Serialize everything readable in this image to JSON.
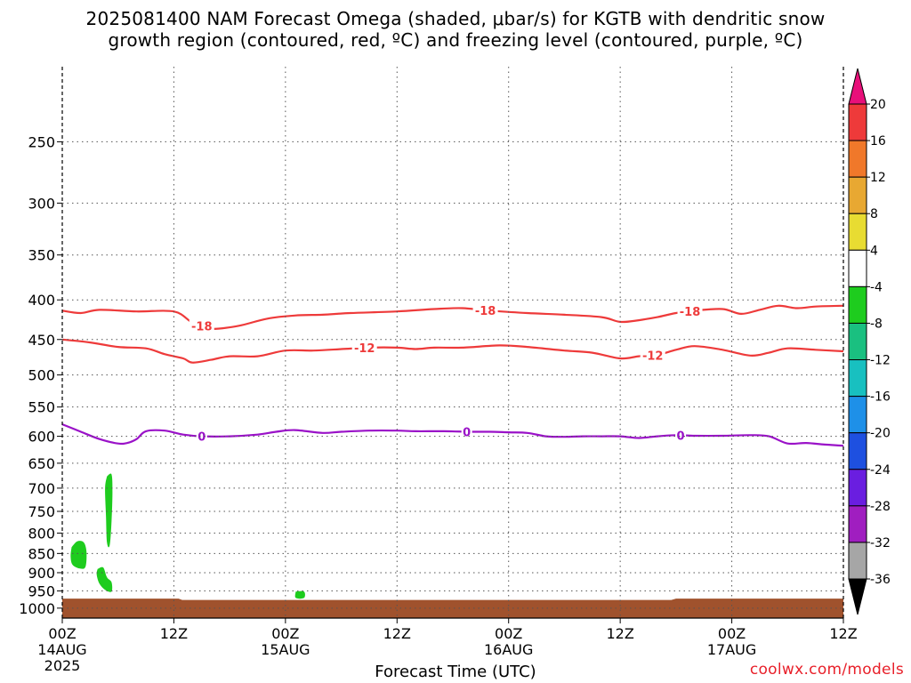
{
  "title": {
    "line1": "2025081400 NAM Forecast Omega (shaded, μbar/s) for KGTB with dendritic snow",
    "line2": "growth region (contoured, red, ºC) and freezing level (contoured, purple, ºC)"
  },
  "xlabel": "Forecast Time (UTC)",
  "credit": "coolwx.com/models",
  "chart_data": {
    "type": "contour",
    "x_unit": "forecast hour",
    "xlim": [
      0,
      84
    ],
    "ylim_hpa": [
      1030,
      200
    ],
    "y_ticks": [
      250,
      300,
      350,
      400,
      450,
      500,
      550,
      600,
      650,
      700,
      750,
      800,
      850,
      900,
      950,
      1000
    ],
    "x_ticks": [
      {
        "hour": 0,
        "label": "00Z",
        "date": "14AUG",
        "year": "2025"
      },
      {
        "hour": 12,
        "label": "12Z",
        "date": "",
        "year": ""
      },
      {
        "hour": 24,
        "label": "00Z",
        "date": "15AUG",
        "year": ""
      },
      {
        "hour": 36,
        "label": "12Z",
        "date": "",
        "year": ""
      },
      {
        "hour": 48,
        "label": "00Z",
        "date": "16AUG",
        "year": ""
      },
      {
        "hour": 60,
        "label": "12Z",
        "date": "",
        "year": ""
      },
      {
        "hour": 72,
        "label": "00Z",
        "date": "17AUG",
        "year": ""
      },
      {
        "hour": 84,
        "label": "12Z",
        "date": "",
        "year": ""
      }
    ],
    "colorbar": {
      "labels": [
        "20",
        "16",
        "12",
        "8",
        "4",
        "-4",
        "-8",
        "-12",
        "-16",
        "-20",
        "-24",
        "-28",
        "-32",
        "-36"
      ],
      "colors": [
        "#ee3a3a",
        "#f0782a",
        "#e8a832",
        "#e8dc32",
        "#ffffff",
        "#1ecc1e",
        "#1ac080",
        "#18c0c0",
        "#1e90e8",
        "#1e50e0",
        "#6a1ee0",
        "#a01ec0",
        "#a6a6a6"
      ],
      "top_arrow_color": "#e8107a",
      "bottom_arrow_color": "#000000"
    },
    "contours": [
      {
        "name": "-18",
        "color": "#ee3a3a",
        "points": [
          [
            0,
            413
          ],
          [
            2,
            416
          ],
          [
            4,
            412
          ],
          [
            8,
            414
          ],
          [
            12,
            414
          ],
          [
            14,
            428
          ],
          [
            16,
            436
          ],
          [
            19,
            432
          ],
          [
            22,
            423
          ],
          [
            25,
            419
          ],
          [
            28,
            418
          ],
          [
            31,
            416
          ],
          [
            36,
            414
          ],
          [
            40,
            411
          ],
          [
            43,
            410
          ],
          [
            46,
            413
          ],
          [
            50,
            416
          ],
          [
            54,
            418
          ],
          [
            58,
            421
          ],
          [
            60,
            427
          ],
          [
            62,
            425
          ],
          [
            64,
            421
          ],
          [
            66,
            416
          ],
          [
            68,
            413
          ],
          [
            71,
            411
          ],
          [
            73,
            417
          ],
          [
            75,
            412
          ],
          [
            77,
            407
          ],
          [
            79,
            410
          ],
          [
            81,
            408
          ],
          [
            84,
            407
          ]
        ],
        "labels": [
          [
            15,
            436
          ],
          [
            45.5,
            411
          ],
          [
            67.5,
            416
          ]
        ]
      },
      {
        "name": "-12",
        "color": "#ee3a3a",
        "points": [
          [
            0,
            450
          ],
          [
            3,
            454
          ],
          [
            6,
            460
          ],
          [
            9,
            462
          ],
          [
            11,
            470
          ],
          [
            13,
            476
          ],
          [
            14,
            482
          ],
          [
            16,
            478
          ],
          [
            18,
            473
          ],
          [
            21,
            473
          ],
          [
            24,
            465
          ],
          [
            27,
            465
          ],
          [
            30,
            463
          ],
          [
            33,
            461
          ],
          [
            36,
            461
          ],
          [
            38,
            463
          ],
          [
            40,
            461
          ],
          [
            43,
            461
          ],
          [
            47,
            458
          ],
          [
            50,
            460
          ],
          [
            54,
            465
          ],
          [
            57,
            468
          ],
          [
            60,
            476
          ],
          [
            62,
            473
          ],
          [
            64,
            471
          ],
          [
            66,
            464
          ],
          [
            68,
            459
          ],
          [
            71,
            464
          ],
          [
            74,
            472
          ],
          [
            76,
            468
          ],
          [
            78,
            462
          ],
          [
            81,
            464
          ],
          [
            84,
            466
          ]
        ],
        "labels": [
          [
            32.5,
            461
          ],
          [
            63.5,
            474
          ]
        ]
      },
      {
        "name": "0",
        "color": "#9a12c8",
        "points": [
          [
            0,
            579
          ],
          [
            2,
            592
          ],
          [
            4,
            605
          ],
          [
            6,
            613
          ],
          [
            7,
            612
          ],
          [
            8,
            605
          ],
          [
            9,
            591
          ],
          [
            11,
            590
          ],
          [
            13,
            597
          ],
          [
            15,
            600
          ],
          [
            18,
            600
          ],
          [
            21,
            597
          ],
          [
            23,
            592
          ],
          [
            25,
            589
          ],
          [
            28,
            594
          ],
          [
            30,
            592
          ],
          [
            33,
            590
          ],
          [
            36,
            590
          ],
          [
            38,
            591
          ],
          [
            41,
            591
          ],
          [
            44,
            592
          ],
          [
            46,
            592
          ],
          [
            48,
            593
          ],
          [
            50,
            594
          ],
          [
            52,
            600
          ],
          [
            54,
            601
          ],
          [
            56,
            600
          ],
          [
            58,
            600
          ],
          [
            60,
            600
          ],
          [
            62,
            603
          ],
          [
            64,
            600
          ],
          [
            66,
            598
          ],
          [
            68,
            599
          ],
          [
            71,
            599
          ],
          [
            74,
            598
          ],
          [
            76,
            600
          ],
          [
            78,
            613
          ],
          [
            80,
            612
          ],
          [
            82,
            615
          ],
          [
            84,
            617
          ]
        ],
        "labels": [
          [
            15,
            601
          ],
          [
            43.5,
            591
          ],
          [
            66.5,
            600
          ]
        ]
      }
    ],
    "shaded_regions": [
      {
        "omega_range": "-8 to -4",
        "color": "#1ecc1e",
        "points": [
          [
            1.0,
            834
          ],
          [
            1.6,
            820
          ],
          [
            2.3,
            822
          ],
          [
            2.6,
            845
          ],
          [
            2.5,
            884
          ],
          [
            1.9,
            889
          ],
          [
            1.1,
            879
          ],
          [
            0.9,
            858
          ]
        ]
      },
      {
        "omega_range": "-8 to -4",
        "color": "#1ecc1e",
        "points": [
          [
            4.8,
            676
          ],
          [
            5.3,
            672
          ],
          [
            5.4,
            708
          ],
          [
            5.3,
            772
          ],
          [
            5.1,
            830
          ],
          [
            4.8,
            822
          ],
          [
            4.7,
            760
          ],
          [
            4.6,
            700
          ]
        ]
      },
      {
        "omega_range": "-8 to -4",
        "color": "#1ecc1e",
        "points": [
          [
            3.8,
            890
          ],
          [
            4.4,
            886
          ],
          [
            4.8,
            912
          ],
          [
            5.3,
            926
          ],
          [
            5.3,
            952
          ],
          [
            4.6,
            947
          ],
          [
            4.0,
            930
          ],
          [
            3.7,
            905
          ]
        ]
      },
      {
        "omega_range": "-8 to -4",
        "color": "#1ecc1e",
        "points": [
          [
            25.1,
            952
          ],
          [
            26.0,
            952
          ],
          [
            26.0,
            970
          ],
          [
            25.1,
            970
          ]
        ]
      }
    ],
    "ground": {
      "color": "#a0522d",
      "points": [
        [
          0,
          972
        ],
        [
          12.5,
          972
        ],
        [
          12.9,
          976
        ],
        [
          65.5,
          976
        ],
        [
          66,
          972
        ],
        [
          84,
          972
        ]
      ]
    }
  }
}
